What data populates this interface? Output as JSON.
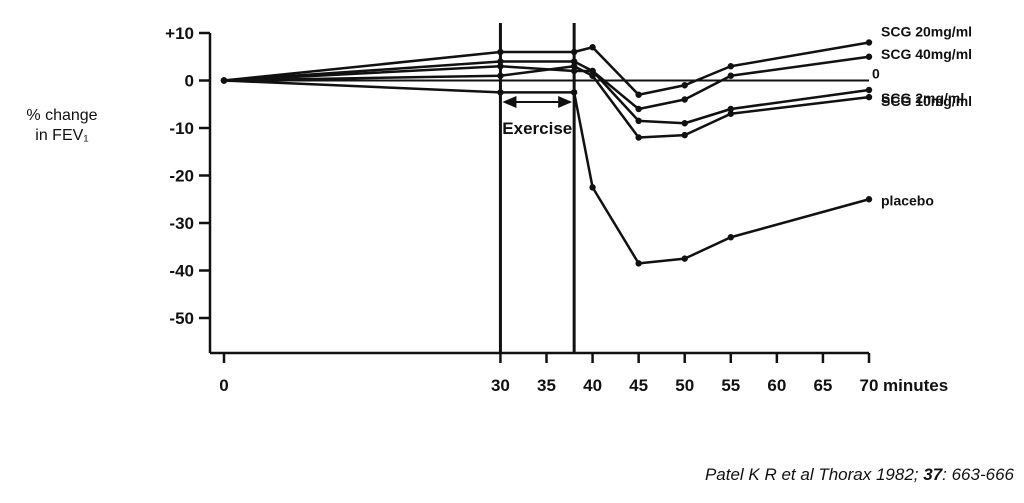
{
  "chart_data": {
    "type": "line",
    "ylabel": [
      "% change",
      "in FEV₁"
    ],
    "x_unit_label": "minutes",
    "xlim": [
      0,
      70
    ],
    "ylim": [
      -55,
      10
    ],
    "x_ticks": [
      {
        "value": 0,
        "label": "0"
      },
      {
        "value": 30,
        "label": "30"
      },
      {
        "value": 35,
        "label": "35"
      },
      {
        "value": 40,
        "label": "40"
      },
      {
        "value": 45,
        "label": "45"
      },
      {
        "value": 50,
        "label": "50"
      },
      {
        "value": 55,
        "label": "55"
      },
      {
        "value": 60,
        "label": "60"
      },
      {
        "value": 65,
        "label": "65"
      },
      {
        "value": 70,
        "label": "70"
      }
    ],
    "y_ticks": [
      {
        "value": 10,
        "label": "+10"
      },
      {
        "value": 0,
        "label": "0"
      },
      {
        "value": -10,
        "label": "-10"
      },
      {
        "value": -20,
        "label": "-20"
      },
      {
        "value": -30,
        "label": "-30"
      },
      {
        "value": -40,
        "label": "-40"
      },
      {
        "value": -50,
        "label": "-50"
      }
    ],
    "exercise": {
      "label": "Exercise",
      "start": 30,
      "end": 38
    },
    "reference_line": {
      "value": 0,
      "label": "0"
    },
    "series": [
      {
        "name": "SCG 20mg/ml",
        "x": [
          0,
          30,
          38,
          40,
          45,
          50,
          55,
          70
        ],
        "y": [
          0,
          6,
          6,
          7,
          -3,
          -1,
          3,
          8
        ]
      },
      {
        "name": "SCG 40mg/ml",
        "x": [
          0,
          30,
          38,
          40,
          45,
          50,
          55,
          70
        ],
        "y": [
          0,
          4,
          4,
          2,
          -6,
          -4,
          1,
          5
        ]
      },
      {
        "name": "SCG 2mg/ml",
        "x": [
          0,
          30,
          38,
          40,
          45,
          50,
          55,
          70
        ],
        "y": [
          0,
          3,
          2,
          2,
          -8.5,
          -9,
          -6,
          -2
        ]
      },
      {
        "name": "SCG 10mg/ml",
        "x": [
          0,
          30,
          38,
          40,
          45,
          50,
          55,
          70
        ],
        "y": [
          0,
          1,
          3,
          1,
          -12,
          -11.5,
          -7,
          -3.5
        ]
      },
      {
        "name": "placebo",
        "x": [
          0,
          30,
          38,
          40,
          45,
          50,
          55,
          70
        ],
        "y": [
          0,
          -2.5,
          -2.5,
          -22.5,
          -38.5,
          -37.5,
          -33,
          -25
        ]
      }
    ]
  },
  "citation": {
    "prefix": "Patel K R et al Thorax 1982; ",
    "volume": "37",
    "pages": ": 663-666"
  }
}
